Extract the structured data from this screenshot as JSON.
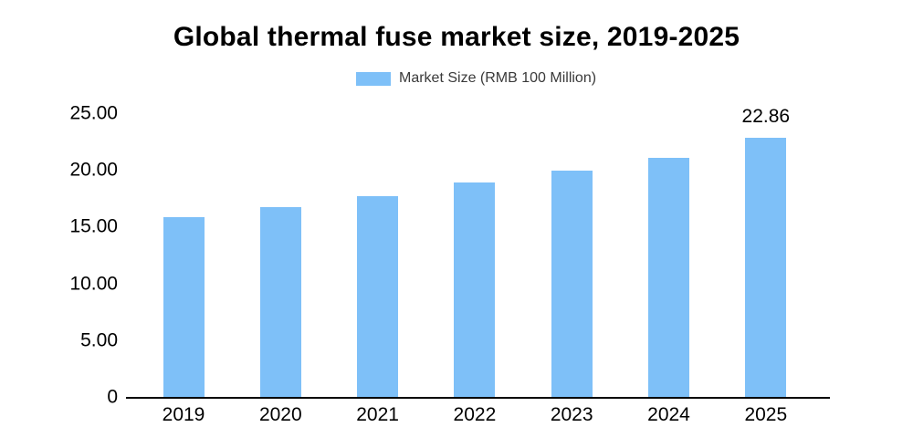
{
  "title": "Global thermal fuse market size, 2019-2025",
  "legend": {
    "label": "Market Size (RMB 100 Million)",
    "swatch_color": "#7EC0F8"
  },
  "chart_data": {
    "type": "bar",
    "title": "Global thermal fuse market size, 2019-2025",
    "categories": [
      "2019",
      "2020",
      "2021",
      "2022",
      "2023",
      "2024",
      "2025"
    ],
    "series": [
      {
        "name": "Market Size (RMB 100 Million)",
        "values": [
          15.8,
          16.7,
          17.7,
          18.9,
          19.9,
          21.1,
          22.86
        ]
      }
    ],
    "data_label_last_bar": "22.86",
    "xlabel": "",
    "ylabel": "",
    "ylim": [
      0,
      25
    ],
    "ytick_values": [
      0,
      5,
      10,
      15,
      20,
      25
    ],
    "ytick_labels": [
      "0",
      "5.00",
      "10.00",
      "15.00",
      "20.00",
      "25.00"
    ],
    "grid": false,
    "legend_position": "top-center",
    "bar_color": "#7EC0F8",
    "axis_color": "#000000",
    "text_color": "#000000",
    "background_color": "#FFFFFF"
  }
}
